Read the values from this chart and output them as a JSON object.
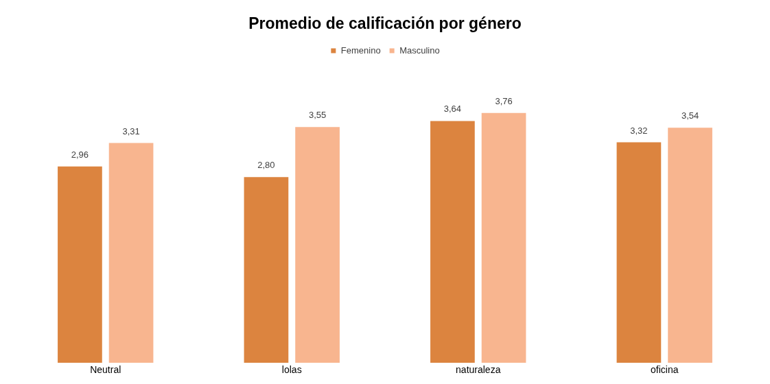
{
  "chart_data": {
    "type": "bar",
    "title": "Promedio de calificación por género",
    "categories": [
      "Neutral",
      "lolas",
      "naturaleza",
      "oficina"
    ],
    "series": [
      {
        "name": "Femenino",
        "color": "#dc843f",
        "values": [
          2.96,
          2.8,
          3.64,
          3.32
        ],
        "value_labels": [
          "2,96",
          "2,80",
          "3,64",
          "3,32"
        ]
      },
      {
        "name": "Masculino",
        "color": "#f8b58f",
        "values": [
          3.31,
          3.55,
          3.76,
          3.54
        ],
        "value_labels": [
          "3,31",
          "3,55",
          "3,76",
          "3,54"
        ]
      }
    ],
    "legend": "top",
    "grid": false
  }
}
